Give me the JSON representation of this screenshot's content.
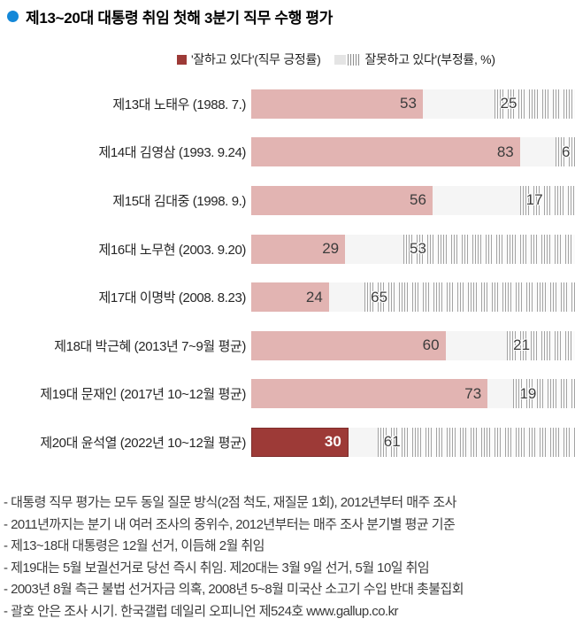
{
  "title": {
    "text": "제13~20대 대통령 취임 첫해 3분기 직무 수행 평가",
    "bullet_color": "#1488d8"
  },
  "legend": {
    "positive_label": "'잘하고 있다'(직무 긍정률)",
    "negative_label": "잘못하고 있다'(부정률, %)"
  },
  "chart_data": {
    "type": "bar",
    "orientation": "horizontal",
    "unit": "%",
    "axis_range": [
      0,
      100
    ],
    "grid": false,
    "legend_position": "top",
    "categories": [
      "제13대 노태우 (1988. 7.)",
      "제14대 김영삼 (1993. 9.24)",
      "제15대 김대중 (1998. 9.)",
      "제16대 노무현 (2003. 9.20)",
      "제17대 이명박 (2008. 8.23)",
      "제18대 박근혜 (2013년 7~9월 평균)",
      "제19대 문재인 (2017년 10~12월 평균)",
      "제20대 윤석열 (2022년 10~12월 평균)"
    ],
    "series": [
      {
        "name": "잘하고 있다(직무 긍정률)",
        "values": [
          53,
          83,
          56,
          29,
          24,
          60,
          73,
          30
        ]
      },
      {
        "name": "잘못하고 있다(부정률)",
        "values": [
          25,
          6,
          17,
          53,
          65,
          21,
          19,
          61
        ]
      }
    ],
    "highlight_index": 7,
    "colors": {
      "positive": "#e2b4b2",
      "positive_highlight": "#9d3a37",
      "negative_stripe": "#a3a3a3",
      "track": "#f5f5f5",
      "title_bullet": "#1488d8"
    }
  },
  "footnotes": [
    "- 대통령 직무 평가는 모두 동일 질문 방식(2점 척도, 재질문 1회), 2012년부터 매주 조사",
    "- 2011년까지는 분기 내 여러 조사의 중위수, 2012년부터는 매주 조사 분기별 평균 기준",
    "- 제13~18대 대통령은 12월 선거, 이듬해 2월 취임",
    "- 제19대는 5월 보궐선거로 당선 즉시 취임. 제20대는 3월 9일 선거, 5월 10일 취임",
    "- 2003년 8월 측근 불법 선거자금 의혹, 2008년 5~8월 미국산 소고기 수입 반대 촛불집회",
    "- 괄호 안은 조사 시기. 한국갤럽 데일리 오피니언 제524호 www.gallup.co.kr"
  ]
}
